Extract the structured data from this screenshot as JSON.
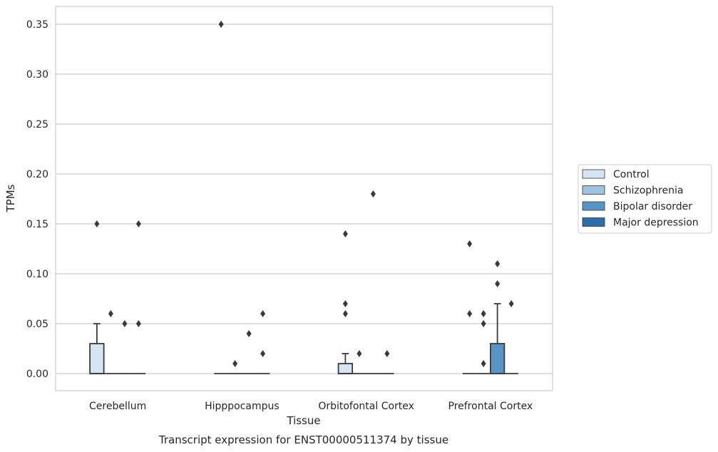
{
  "chart_data": {
    "type": "box",
    "title": "",
    "caption": "Transcript expression for ENST00000511374 by tissue",
    "xlabel": "Tissue",
    "ylabel": "TPMs",
    "ylim": [
      -0.017,
      0.367
    ],
    "yticks": [
      0.0,
      0.05,
      0.1,
      0.15,
      0.2,
      0.25,
      0.3,
      0.35
    ],
    "ytick_labels": [
      "0.00",
      "0.05",
      "0.10",
      "0.15",
      "0.20",
      "0.25",
      "0.30",
      "0.35"
    ],
    "grid": "horizontal",
    "legend_position": "right",
    "categories": [
      "Cerebellum",
      "Hipppocampus",
      "Orbitofontal Cortex",
      "Prefrontal Cortex"
    ],
    "series": [
      {
        "name": "Control",
        "color": "#d6e5f3",
        "boxes": [
          {
            "q1": 0.0,
            "median": 0.0,
            "q3": 0.03,
            "whisker_low": 0.0,
            "whisker_high": 0.05,
            "outliers": [
              0.15
            ]
          },
          {
            "q1": 0.0,
            "median": 0.0,
            "q3": 0.0,
            "whisker_low": 0.0,
            "whisker_high": 0.0,
            "outliers": [
              0.35
            ]
          },
          {
            "q1": 0.0,
            "median": 0.0,
            "q3": 0.01,
            "whisker_low": 0.0,
            "whisker_high": 0.02,
            "outliers": [
              0.14,
              0.07,
              0.06
            ]
          },
          {
            "q1": 0.0,
            "median": 0.0,
            "q3": 0.0,
            "whisker_low": 0.0,
            "whisker_high": 0.0,
            "outliers": [
              0.13,
              0.06
            ]
          }
        ]
      },
      {
        "name": "Schizophrenia",
        "color": "#9dc3de",
        "boxes": [
          {
            "q1": 0.0,
            "median": 0.0,
            "q3": 0.0,
            "whisker_low": 0.0,
            "whisker_high": 0.0,
            "outliers": [
              0.06
            ]
          },
          {
            "q1": 0.0,
            "median": 0.0,
            "q3": 0.0,
            "whisker_low": 0.0,
            "whisker_high": 0.0,
            "outliers": [
              0.01
            ]
          },
          {
            "q1": 0.0,
            "median": 0.0,
            "q3": 0.0,
            "whisker_low": 0.0,
            "whisker_high": 0.0,
            "outliers": [
              0.02
            ]
          },
          {
            "q1": 0.0,
            "median": 0.0,
            "q3": 0.0,
            "whisker_low": 0.0,
            "whisker_high": 0.0,
            "outliers": [
              0.06,
              0.05,
              0.01
            ]
          }
        ]
      },
      {
        "name": "Bipolar disorder",
        "color": "#5596c6",
        "boxes": [
          {
            "q1": 0.0,
            "median": 0.0,
            "q3": 0.0,
            "whisker_low": 0.0,
            "whisker_high": 0.0,
            "outliers": [
              0.05
            ]
          },
          {
            "q1": 0.0,
            "median": 0.0,
            "q3": 0.0,
            "whisker_low": 0.0,
            "whisker_high": 0.0,
            "outliers": [
              0.04
            ]
          },
          {
            "q1": 0.0,
            "median": 0.0,
            "q3": 0.0,
            "whisker_low": 0.0,
            "whisker_high": 0.0,
            "outliers": [
              0.18
            ]
          },
          {
            "q1": 0.0,
            "median": 0.0,
            "q3": 0.03,
            "whisker_low": 0.0,
            "whisker_high": 0.07,
            "outliers": [
              0.11,
              0.09
            ]
          }
        ]
      },
      {
        "name": "Major depression",
        "color": "#2c6dab",
        "boxes": [
          {
            "q1": 0.0,
            "median": 0.0,
            "q3": 0.0,
            "whisker_low": 0.0,
            "whisker_high": 0.0,
            "outliers": [
              0.15,
              0.05
            ]
          },
          {
            "q1": 0.0,
            "median": 0.0,
            "q3": 0.0,
            "whisker_low": 0.0,
            "whisker_high": 0.0,
            "outliers": [
              0.06,
              0.02
            ]
          },
          {
            "q1": 0.0,
            "median": 0.0,
            "q3": 0.0,
            "whisker_low": 0.0,
            "whisker_high": 0.0,
            "outliers": [
              0.02
            ]
          },
          {
            "q1": 0.0,
            "median": 0.0,
            "q3": 0.0,
            "whisker_low": 0.0,
            "whisker_high": 0.0,
            "outliers": [
              0.07
            ]
          }
        ]
      }
    ]
  }
}
